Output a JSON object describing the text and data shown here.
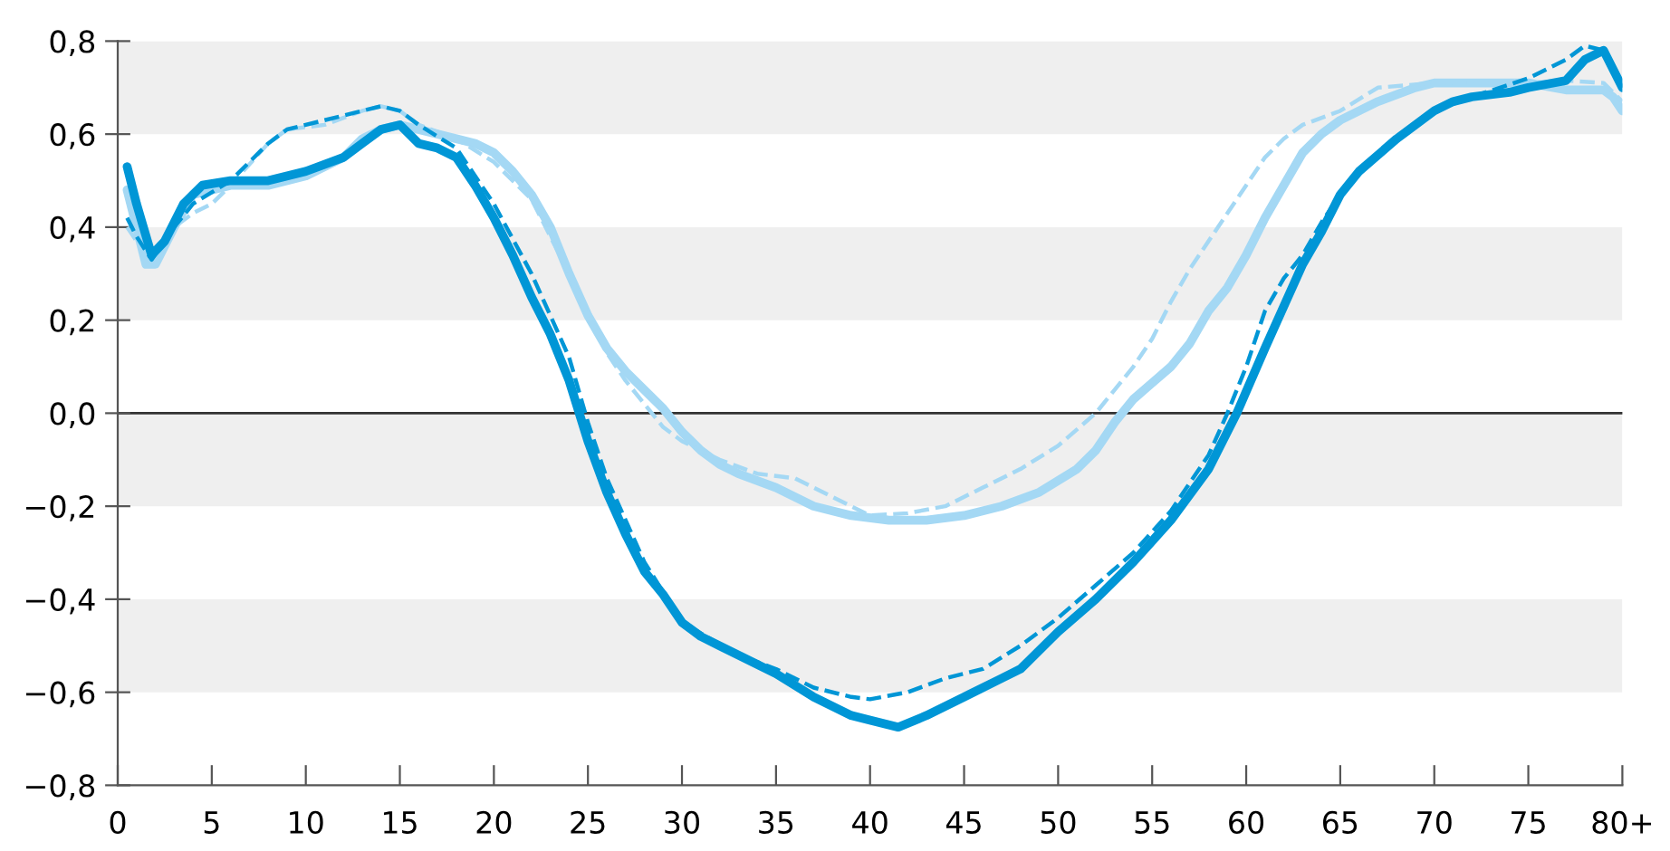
{
  "chart_data": {
    "type": "line",
    "xlim": [
      0,
      80
    ],
    "ylim": [
      -0.8,
      0.8
    ],
    "xticks": [
      0,
      5,
      10,
      15,
      20,
      25,
      30,
      35,
      40,
      45,
      50,
      55,
      60,
      65,
      70,
      75,
      {
        "value": 80,
        "label": "80+"
      }
    ],
    "yticks": [
      {
        "value": -0.8,
        "label": "−0,8"
      },
      {
        "value": -0.6,
        "label": "−0,6"
      },
      {
        "value": -0.4,
        "label": "−0,4"
      },
      {
        "value": -0.2,
        "label": "−0,2"
      },
      {
        "value": 0,
        "label": "0,0"
      },
      {
        "value": 0.2,
        "label": "0,2"
      },
      {
        "value": 0.4,
        "label": "0,4"
      },
      {
        "value": 0.6,
        "label": "0,6"
      },
      {
        "value": 0.8,
        "label": "0,8"
      }
    ],
    "grid": false,
    "legend": false,
    "bands": [
      {
        "axis": "y",
        "from": 0.6,
        "to": 0.8,
        "color": "#efefef"
      },
      {
        "axis": "y",
        "from": 0.2,
        "to": 0.4,
        "color": "#efefef"
      },
      {
        "axis": "y",
        "from": -0.2,
        "to": 0,
        "color": "#efefef"
      },
      {
        "axis": "y",
        "from": -0.6,
        "to": -0.4,
        "color": "#efefef"
      }
    ],
    "ref_lines": [
      {
        "axis": "y",
        "value": 0,
        "color": "#333333"
      }
    ],
    "series": [
      {
        "color": "#a4d8f4",
        "line_style": "solid",
        "x": [
          0.5,
          1,
          1.5,
          2,
          3,
          4,
          6,
          8,
          10,
          12,
          13,
          14,
          15,
          16,
          18,
          19,
          20,
          21,
          22,
          23,
          24,
          25,
          26,
          27,
          28,
          29,
          30,
          31,
          32,
          33,
          35,
          37,
          39,
          41,
          43,
          45,
          47,
          49,
          51,
          52,
          53,
          54,
          56,
          57,
          58,
          59,
          60,
          61,
          62,
          63,
          64,
          65,
          67,
          69,
          70,
          72,
          75,
          77,
          79,
          79.5,
          80
        ],
        "values": [
          0.48,
          0.4,
          0.32,
          0.32,
          0.4,
          0.47,
          0.49,
          0.49,
          0.51,
          0.55,
          0.59,
          0.61,
          0.62,
          0.61,
          0.59,
          0.58,
          0.56,
          0.52,
          0.47,
          0.4,
          0.3,
          0.21,
          0.14,
          0.09,
          0.05,
          0.01,
          -0.04,
          -0.08,
          -0.11,
          -0.13,
          -0.16,
          -0.2,
          -0.22,
          -0.23,
          -0.23,
          -0.22,
          -0.2,
          -0.17,
          -0.12,
          -0.08,
          -0.02,
          0.03,
          0.1,
          0.15,
          0.22,
          0.27,
          0.34,
          0.42,
          0.49,
          0.56,
          0.6,
          0.63,
          0.67,
          0.7,
          0.71,
          0.71,
          0.71,
          0.695,
          0.695,
          0.68,
          0.65
        ]
      },
      {
        "color": "#a4d8f4",
        "line_style": "dashed",
        "x": [
          0.5,
          1,
          2,
          3,
          4,
          5,
          6,
          8,
          9,
          11,
          13,
          14,
          15,
          16,
          18,
          20,
          22,
          23,
          24,
          25,
          26,
          27,
          28,
          29,
          30,
          32,
          34,
          36,
          38,
          40,
          42,
          44,
          46,
          48,
          50,
          52,
          54,
          55,
          56,
          57,
          58,
          59,
          60,
          61,
          62,
          63,
          65,
          67,
          70,
          75,
          77,
          79,
          80
        ],
        "values": [
          0.4,
          0.37,
          0.33,
          0.4,
          0.43,
          0.45,
          0.49,
          0.58,
          0.61,
          0.62,
          0.65,
          0.66,
          0.65,
          0.62,
          0.59,
          0.54,
          0.46,
          0.38,
          0.3,
          0.21,
          0.13,
          0.07,
          0.02,
          -0.03,
          -0.06,
          -0.1,
          -0.13,
          -0.14,
          -0.18,
          -0.22,
          -0.215,
          -0.2,
          -0.16,
          -0.12,
          -0.07,
          0.0,
          0.1,
          0.16,
          0.24,
          0.31,
          0.37,
          0.43,
          0.49,
          0.55,
          0.59,
          0.62,
          0.65,
          0.7,
          0.71,
          0.71,
          0.715,
          0.71,
          0.67
        ]
      },
      {
        "color": "#0096d6",
        "line_style": "solid",
        "x": [
          0.5,
          1,
          1.8,
          2.5,
          3.5,
          4.5,
          6,
          8,
          10,
          12,
          13,
          14,
          15,
          16,
          17,
          18,
          19,
          20,
          21,
          22,
          23,
          24,
          25,
          26,
          27,
          28,
          29,
          30,
          31,
          32,
          33,
          35,
          37,
          39,
          40,
          41.5,
          43,
          45,
          47,
          48,
          50,
          52,
          54,
          56,
          58,
          59.5,
          61,
          62,
          63,
          64,
          65,
          66,
          68,
          70,
          71,
          72,
          74,
          75,
          77,
          78,
          79,
          80
        ],
        "values": [
          0.53,
          0.45,
          0.34,
          0.37,
          0.45,
          0.49,
          0.5,
          0.5,
          0.52,
          0.55,
          0.58,
          0.61,
          0.62,
          0.58,
          0.57,
          0.55,
          0.49,
          0.42,
          0.34,
          0.25,
          0.17,
          0.07,
          -0.06,
          -0.17,
          -0.26,
          -0.34,
          -0.39,
          -0.45,
          -0.48,
          -0.5,
          -0.52,
          -0.56,
          -0.61,
          -0.65,
          -0.66,
          -0.675,
          -0.65,
          -0.61,
          -0.57,
          -0.55,
          -0.47,
          -0.4,
          -0.32,
          -0.23,
          -0.12,
          0.0,
          0.14,
          0.23,
          0.32,
          0.39,
          0.47,
          0.52,
          0.59,
          0.65,
          0.67,
          0.68,
          0.69,
          0.7,
          0.715,
          0.76,
          0.78,
          0.7
        ]
      },
      {
        "color": "#0096d6",
        "line_style": "dashed",
        "x": [
          0.5,
          1,
          1.8,
          3,
          4,
          6,
          8,
          9,
          11,
          13,
          14,
          15,
          16,
          18,
          20,
          22,
          24,
          25,
          26,
          28,
          30,
          33,
          35,
          37,
          39,
          40,
          42,
          44,
          46,
          48,
          50,
          52,
          54,
          56,
          58,
          59,
          60,
          61,
          62,
          63,
          64,
          65,
          67,
          70,
          72,
          75,
          77,
          78,
          79,
          80
        ],
        "values": [
          0.42,
          0.38,
          0.33,
          0.4,
          0.45,
          0.5,
          0.58,
          0.61,
          0.63,
          0.65,
          0.66,
          0.65,
          0.62,
          0.57,
          0.45,
          0.3,
          0.12,
          -0.02,
          -0.14,
          -0.32,
          -0.45,
          -0.52,
          -0.55,
          -0.59,
          -0.61,
          -0.615,
          -0.6,
          -0.57,
          -0.55,
          -0.5,
          -0.44,
          -0.37,
          -0.3,
          -0.21,
          -0.09,
          0.0,
          0.1,
          0.22,
          0.29,
          0.34,
          0.41,
          0.47,
          0.56,
          0.65,
          0.68,
          0.72,
          0.76,
          0.79,
          0.78,
          0.7
        ]
      }
    ]
  }
}
